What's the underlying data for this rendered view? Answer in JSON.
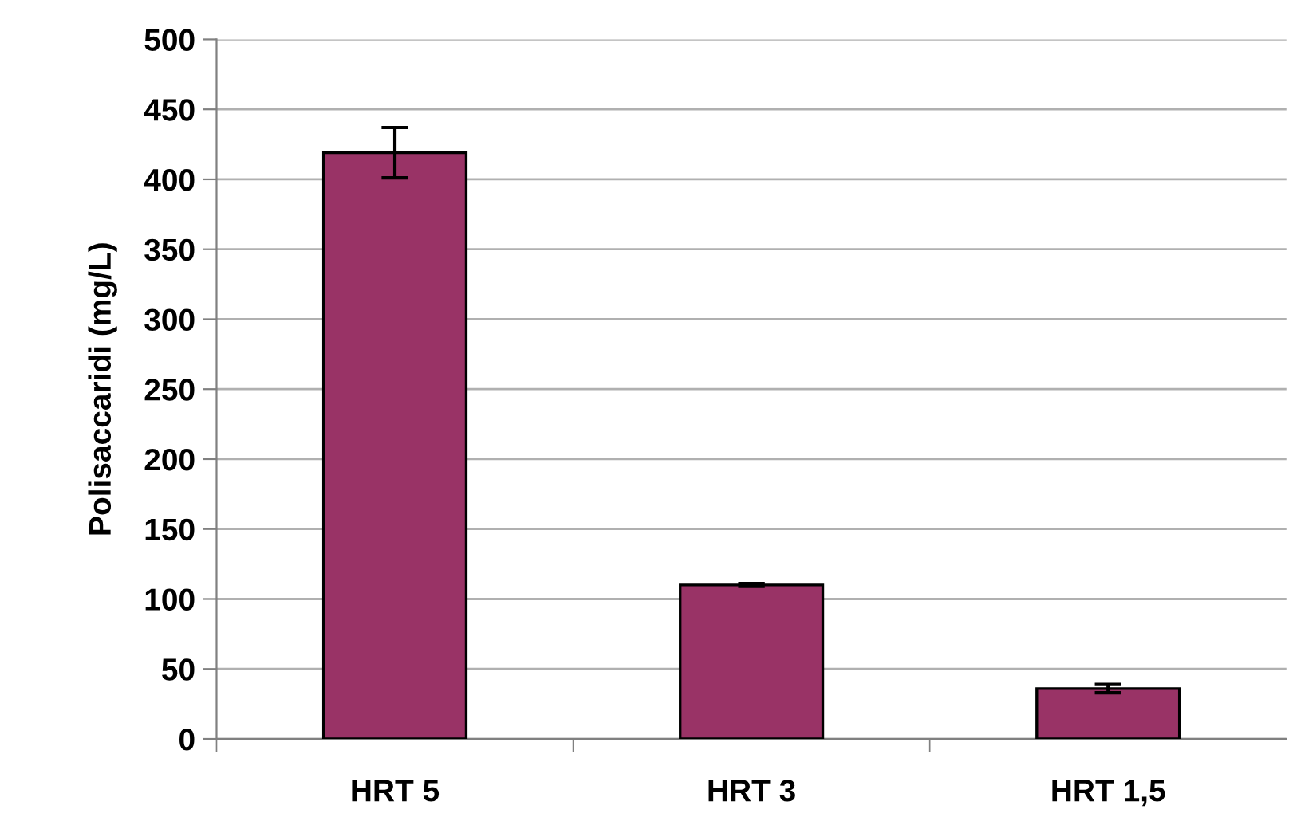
{
  "chart_data": {
    "type": "bar",
    "ylabel": "Polisaccaridi (mg/L)",
    "categories": [
      "HRT 5",
      "HRT 3",
      "HRT 1,5"
    ],
    "values": [
      419,
      110,
      36
    ],
    "errors": [
      18,
      1,
      3
    ],
    "color": "#993366",
    "ylim": [
      0,
      500
    ],
    "yticks": [
      0,
      50,
      100,
      150,
      200,
      250,
      300,
      350,
      400,
      450,
      500
    ],
    "grid": "y"
  }
}
